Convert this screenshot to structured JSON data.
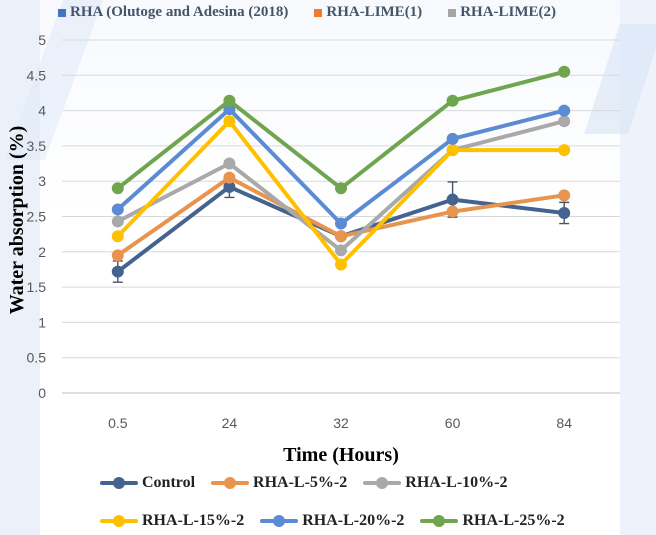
{
  "top_legend": [
    {
      "label": "RHA (Olutoge and Adesina (2018)",
      "color": "#4472c4"
    },
    {
      "label": "RHA-LIME(1)",
      "color": "#ed7d31"
    },
    {
      "label": "RHA-LIME(2)",
      "color": "#a5a5a5"
    }
  ],
  "chart_data": {
    "type": "line",
    "categories": [
      "0.5",
      "24",
      "32",
      "60",
      "84"
    ],
    "xlabel": "Time (Hours)",
    "ylabel": "Water absorption (%)",
    "ylim": [
      0,
      5
    ],
    "yticks": [
      "0",
      "0.5",
      "1",
      "1.5",
      "2",
      "2.5",
      "3",
      "3.5",
      "4",
      "4.5",
      "5"
    ],
    "grid": true,
    "legend_position": "bottom",
    "series": [
      {
        "name": "Control",
        "color": "#44638f",
        "values": [
          1.72,
          2.92,
          2.22,
          2.74,
          2.55
        ],
        "errors": [
          0.15,
          0.15,
          0.0,
          0.25,
          0.15
        ]
      },
      {
        "name": "RHA-L-5%-2",
        "color": "#e8944e",
        "values": [
          1.95,
          3.05,
          2.22,
          2.57,
          2.8
        ],
        "errors": [
          0.0,
          0.0,
          0.0,
          0.0,
          0.0
        ]
      },
      {
        "name": "RHA-L-10%-2",
        "color": "#a9a9a9",
        "values": [
          2.43,
          3.25,
          2.02,
          3.44,
          3.85
        ],
        "errors": [
          0.0,
          0.0,
          0.0,
          0.0,
          0.0
        ]
      },
      {
        "name": "RHA-L-15%-2",
        "color": "#ffc000",
        "values": [
          2.22,
          3.85,
          1.82,
          3.44,
          3.44
        ],
        "errors": [
          0.0,
          0.0,
          0.0,
          0.0,
          0.0
        ]
      },
      {
        "name": "RHA-L-20%-2",
        "color": "#5b8bd2",
        "values": [
          2.6,
          4.02,
          2.4,
          3.6,
          4.0
        ],
        "errors": [
          0.0,
          0.0,
          0.0,
          0.0,
          0.0
        ]
      },
      {
        "name": "RHA-L-25%-2",
        "color": "#70a550",
        "values": [
          2.9,
          4.14,
          2.9,
          4.14,
          4.55
        ],
        "errors": [
          0.0,
          0.0,
          0.0,
          0.0,
          0.0
        ]
      }
    ]
  }
}
